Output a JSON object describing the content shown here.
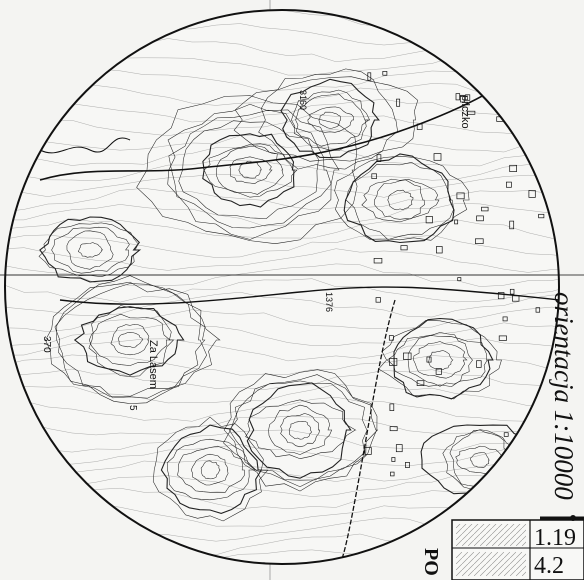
{
  "map": {
    "place_labels": {
      "top_right": "pilczko",
      "lower_left": "Za Lasem"
    },
    "spot_heights": {
      "west": "370",
      "south_west": "5",
      "north": "3160",
      "center": "1376"
    },
    "orientation_text": "orientacja 1:10000",
    "legend": {
      "title": "PO",
      "rows": [
        "1.19",
        "4.2"
      ]
    }
  }
}
